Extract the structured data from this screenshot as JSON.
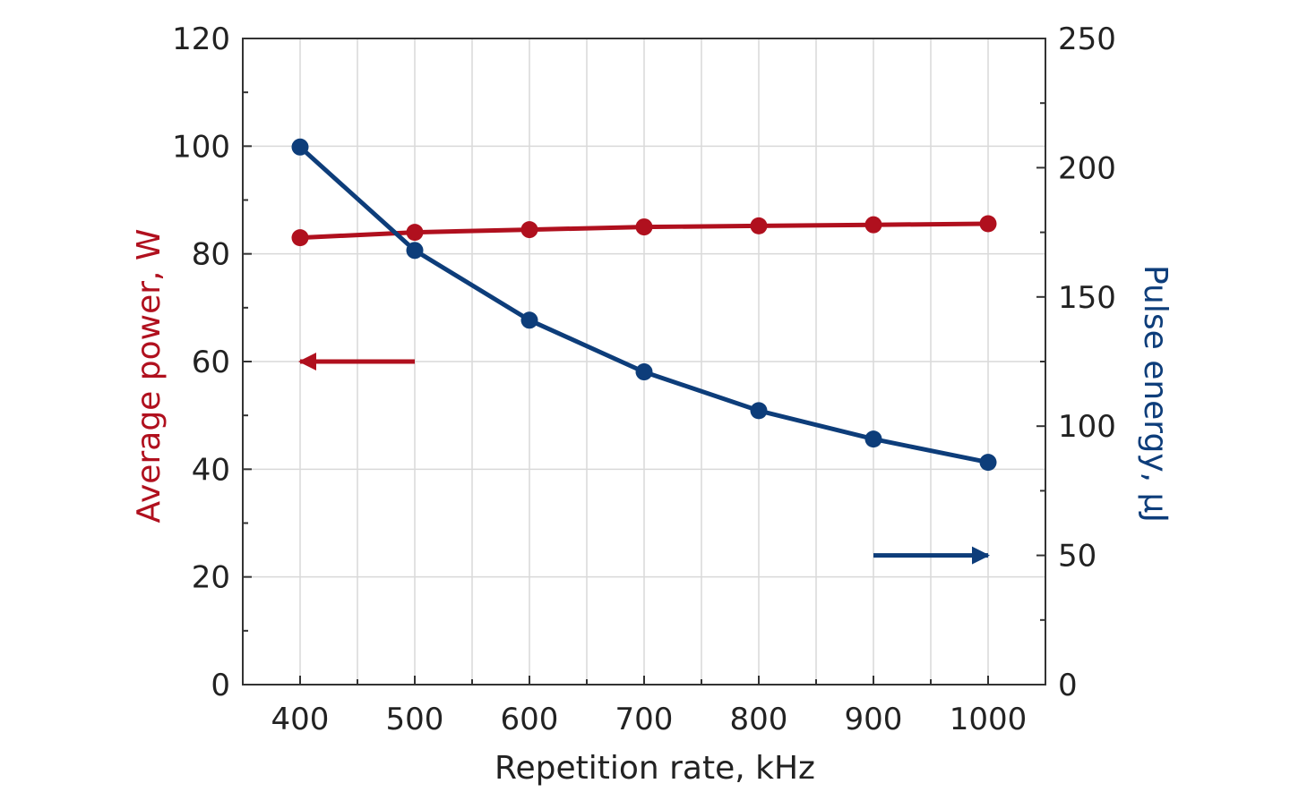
{
  "chart_data": {
    "type": "line",
    "title": "",
    "xlabel": "Repetition rate, kHz",
    "ylabel_left": "Average power, W",
    "ylabel_right": "Pulse energy, μJ",
    "x": [
      400,
      500,
      600,
      700,
      800,
      900,
      1000
    ],
    "x_ticks": [
      400,
      500,
      600,
      700,
      800,
      900,
      1000
    ],
    "x_tick_labels": [
      "400",
      "500",
      "600",
      "700",
      "800",
      "900",
      "1000"
    ],
    "xlim": [
      350,
      1050
    ],
    "ylim_left": [
      0,
      120
    ],
    "ylim_right": [
      0,
      250
    ],
    "y_ticks_left": [
      0,
      20,
      40,
      60,
      80,
      100,
      120
    ],
    "y_tick_labels_left": [
      "0",
      "20",
      "40",
      "60",
      "80",
      "100",
      "120"
    ],
    "y_ticks_right": [
      0,
      50,
      100,
      150,
      200,
      250
    ],
    "y_tick_labels_right": [
      "0",
      "50",
      "100",
      "150",
      "200",
      "250"
    ],
    "grid": true,
    "series": [
      {
        "axis": "left",
        "color": "#b0101e",
        "values": [
          83,
          84,
          84.5,
          85,
          85.2,
          85.4,
          85.6
        ]
      },
      {
        "axis": "right",
        "color": "#0d3d7a",
        "values": [
          208,
          168,
          141,
          121,
          106,
          95,
          86
        ]
      }
    ],
    "annotations": [
      {
        "type": "arrow",
        "direction": "left",
        "series_axis": "left",
        "color": "#b0101e"
      },
      {
        "type": "arrow",
        "direction": "right",
        "series_axis": "right",
        "color": "#0d3d7a"
      }
    ]
  }
}
